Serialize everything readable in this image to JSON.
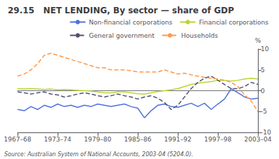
{
  "chart_data": {
    "type": "line",
    "title": "29.15   NET LENDING, By sector — share of GDP",
    "ylabel": "%",
    "annotations": [
      "Source: Australian System of National Accounts, 2003-04 (5204.0)."
    ],
    "categories": [
      "1967–68",
      null,
      null,
      null,
      null,
      null,
      "1973–74",
      null,
      null,
      null,
      null,
      null,
      "1979–80",
      null,
      null,
      null,
      null,
      null,
      "1985–86",
      null,
      null,
      null,
      null,
      null,
      "1991–92",
      null,
      null,
      null,
      null,
      null,
      "1997–98",
      null,
      null,
      null,
      null,
      null,
      "2003–04"
    ],
    "series": [
      {
        "name": "Non-financial corporations",
        "line_style": "solid",
        "values": [
          -4.5,
          -4.8,
          -3.8,
          -4.5,
          -3.5,
          -4.0,
          -3.2,
          -3.8,
          -3.5,
          -4.0,
          -3.5,
          -3.8,
          -3.2,
          -3.5,
          -3.8,
          -3.5,
          -3.2,
          -3.8,
          -4.2,
          -6.5,
          -4.8,
          -3.5,
          -3.2,
          -3.8,
          -4.0,
          -3.5,
          -3.0,
          -3.8,
          -3.0,
          -4.5,
          -3.2,
          -2.0,
          0.5,
          -0.5,
          -1.5,
          -2.0,
          -1.8
        ]
      },
      {
        "name": "Financial corporations",
        "line_style": "solid",
        "values": [
          0.5,
          0.4,
          0.5,
          0.4,
          0.3,
          0.4,
          0.2,
          0.3,
          0.2,
          0.1,
          0.0,
          -0.1,
          -0.3,
          -0.5,
          -0.5,
          -0.3,
          -0.3,
          -0.5,
          -0.7,
          -0.8,
          -0.5,
          -0.2,
          0.0,
          0.2,
          0.5,
          1.0,
          1.5,
          1.8,
          2.0,
          2.2,
          2.5,
          2.5,
          2.3,
          2.5,
          2.8,
          3.0,
          2.8
        ]
      },
      {
        "name": "General government",
        "line_style": "dashed",
        "values": [
          -0.3,
          -0.5,
          -0.8,
          -0.5,
          -0.3,
          -0.8,
          -1.0,
          -1.5,
          -1.2,
          -0.8,
          -0.5,
          -0.8,
          -1.2,
          -1.5,
          -1.2,
          -0.8,
          -1.2,
          -1.5,
          -2.0,
          -1.5,
          -1.2,
          -1.8,
          -2.8,
          -4.5,
          -3.5,
          -1.5,
          0.5,
          2.0,
          3.0,
          3.5,
          2.5,
          1.5,
          0.5,
          0.5,
          1.0,
          2.0,
          1.5
        ]
      },
      {
        "name": "Households",
        "line_style": "dashed",
        "values": [
          3.5,
          4.0,
          5.0,
          6.5,
          8.5,
          9.0,
          8.5,
          8.0,
          7.5,
          7.0,
          6.5,
          6.0,
          5.5,
          5.5,
          5.0,
          5.0,
          5.0,
          4.8,
          4.5,
          4.5,
          4.5,
          4.5,
          5.0,
          4.5,
          4.0,
          4.2,
          3.8,
          3.5,
          3.2,
          3.0,
          2.8,
          2.5,
          2.0,
          1.0,
          -1.0,
          -2.5,
          -5.0
        ]
      }
    ],
    "ylim": [
      -10,
      10
    ],
    "yticks": [
      -10,
      -5,
      0,
      5,
      10
    ],
    "grid": false,
    "legend": "upper right"
  }
}
